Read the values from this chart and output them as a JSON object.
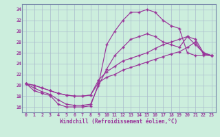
{
  "xlabel": "Windchill (Refroidissement éolien,°C)",
  "background_color": "#cceedd",
  "line_color": "#993399",
  "grid_color": "#aabbcc",
  "xlim": [
    -0.5,
    23.5
  ],
  "ylim": [
    15.0,
    35.0
  ],
  "xticks": [
    0,
    1,
    2,
    3,
    4,
    5,
    6,
    7,
    8,
    9,
    10,
    11,
    12,
    13,
    14,
    15,
    16,
    17,
    18,
    19,
    20,
    21,
    22,
    23
  ],
  "yticks": [
    16,
    18,
    20,
    22,
    24,
    26,
    28,
    30,
    32,
    34
  ],
  "series": [
    {
      "x": [
        0,
        1,
        2,
        3,
        4,
        5,
        6,
        7,
        8,
        9,
        10,
        11,
        12,
        13,
        14,
        15,
        16,
        17,
        18,
        19,
        20,
        21,
        22,
        23
      ],
      "y": [
        20.3,
        19.0,
        18.5,
        18.1,
        16.5,
        16.0,
        16.0,
        16.0,
        16.2,
        20.3,
        27.5,
        30.0,
        32.0,
        33.5,
        33.5,
        34.0,
        33.5,
        32.0,
        31.0,
        30.5,
        26.0,
        25.5,
        25.5,
        25.5
      ]
    },
    {
      "x": [
        0,
        1,
        2,
        3,
        4,
        5,
        6,
        7,
        8,
        9,
        10,
        11,
        12,
        13,
        14,
        15,
        16,
        17,
        18,
        19,
        20,
        21,
        22,
        23
      ],
      "y": [
        20.3,
        19.5,
        18.8,
        18.3,
        17.3,
        16.5,
        16.3,
        16.3,
        16.5,
        20.0,
        23.0,
        25.5,
        27.0,
        28.5,
        29.0,
        29.5,
        29.0,
        28.0,
        27.5,
        27.0,
        29.0,
        28.5,
        26.0,
        25.5
      ]
    },
    {
      "x": [
        0,
        1,
        2,
        3,
        4,
        5,
        6,
        7,
        8,
        9,
        10,
        11,
        12,
        13,
        14,
        15,
        16,
        17,
        18,
        19,
        20,
        21,
        22,
        23
      ],
      "y": [
        20.3,
        20.0,
        19.5,
        19.0,
        18.5,
        18.2,
        18.0,
        18.0,
        18.2,
        21.0,
        22.5,
        23.5,
        24.5,
        25.0,
        25.5,
        26.0,
        26.8,
        27.5,
        28.0,
        28.5,
        29.0,
        27.5,
        26.0,
        25.5
      ]
    },
    {
      "x": [
        0,
        1,
        2,
        3,
        4,
        5,
        6,
        7,
        8,
        9,
        10,
        11,
        12,
        13,
        14,
        15,
        16,
        17,
        18,
        19,
        20,
        21,
        22,
        23
      ],
      "y": [
        20.3,
        20.0,
        19.5,
        19.0,
        18.5,
        18.2,
        18.0,
        18.0,
        18.2,
        20.5,
        21.5,
        22.0,
        22.8,
        23.3,
        23.8,
        24.3,
        24.8,
        25.3,
        25.8,
        26.2,
        27.0,
        28.0,
        25.8,
        25.5
      ]
    }
  ]
}
